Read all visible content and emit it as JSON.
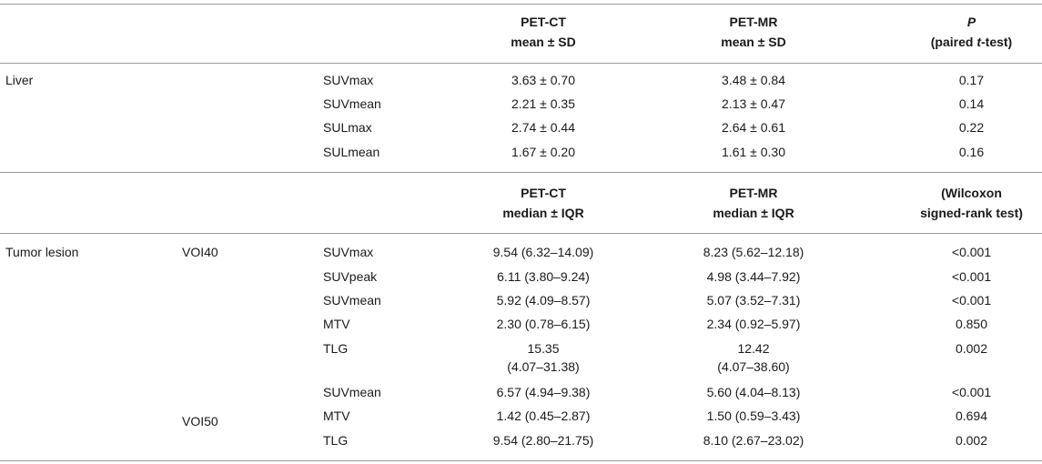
{
  "header1": {
    "pet_ct": [
      "PET-CT",
      "mean ± SD"
    ],
    "pet_mr": [
      "PET-MR",
      "mean ± SD"
    ],
    "p_label": "P",
    "p_test_prefix": "(paired ",
    "p_test_italic": "t",
    "p_test_suffix": "-test)"
  },
  "liver": {
    "label": "Liver",
    "rows": [
      {
        "metric": "SUVmax",
        "ct": "3.63 ± 0.70",
        "mr": "3.48 ± 0.84",
        "p": "0.17"
      },
      {
        "metric": "SUVmean",
        "ct": "2.21 ± 0.35",
        "mr": "2.13 ± 0.47",
        "p": "0.14"
      },
      {
        "metric": "SULmax",
        "ct": "2.74 ± 0.44",
        "mr": "2.64 ± 0.61",
        "p": "0.22"
      },
      {
        "metric": "SULmean",
        "ct": "1.67 ± 0.20",
        "mr": "1.61 ± 0.30",
        "p": "0.16"
      }
    ]
  },
  "header2": {
    "pet_ct": [
      "PET-CT",
      "median ± IQR"
    ],
    "pet_mr": [
      "PET-MR",
      "median ± IQR"
    ],
    "p_test": [
      "(Wilcoxon",
      "signed-rank test)"
    ]
  },
  "tumor": {
    "label": "Tumor lesion",
    "voi40": "VOI40",
    "voi50": "VOI50",
    "rows": [
      {
        "metric": "SUVmax",
        "ct": "9.54 (6.32–14.09)",
        "mr": "8.23 (5.62–12.18)",
        "p": "<0.001"
      },
      {
        "metric": "SUVpeak",
        "ct": "6.11 (3.80–9.24)",
        "mr": "4.98 (3.44–7.92)",
        "p": "<0.001"
      },
      {
        "metric": "SUVmean",
        "ct": "5.92 (4.09–8.57)",
        "mr": "5.07 (3.52–7.31)",
        "p": "<0.001"
      },
      {
        "metric": "MTV",
        "ct": "2.30 (0.78–6.15)",
        "mr": "2.34 (0.92–5.97)",
        "p": "0.850"
      },
      {
        "metric": "TLG",
        "ct": [
          "15.35",
          "(4.07–31.38)"
        ],
        "mr": [
          "12.42",
          "(4.07–38.60)"
        ],
        "p": "0.002"
      },
      {
        "metric": "SUVmean",
        "ct": "6.57 (4.94–9.38)",
        "mr": "5.60 (4.04–8.13)",
        "p": "<0.001"
      },
      {
        "metric": "MTV",
        "ct": "1.42 (0.45–2.87)",
        "mr": "1.50 (0.59–3.43)",
        "p": "0.694"
      },
      {
        "metric": "TLG",
        "ct": "9.54 (2.80–21.75)",
        "mr": "8.10 (2.67–23.02)",
        "p": "0.002"
      }
    ]
  }
}
